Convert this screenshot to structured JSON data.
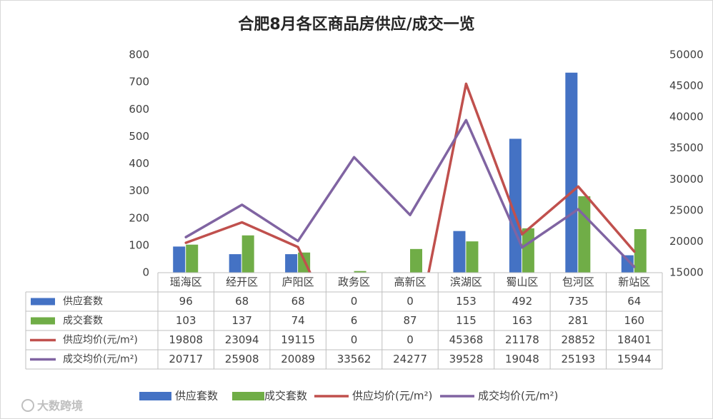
{
  "chart_data": {
    "type": "bar",
    "title": "合肥8月各区商品房供应/成交一览",
    "categories": [
      "瑶海区",
      "经开区",
      "庐阳区",
      "政务区",
      "高新区",
      "滨湖区",
      "蜀山区",
      "包河区",
      "新站区"
    ],
    "ylim_left": [
      0,
      800
    ],
    "yticks_left": [
      0,
      100,
      200,
      300,
      400,
      500,
      600,
      700,
      800
    ],
    "ylim_right": [
      15000,
      50000
    ],
    "yticks_right": [
      15000,
      20000,
      25000,
      30000,
      35000,
      40000,
      45000,
      50000
    ],
    "grid": false,
    "legend_position": "bottom",
    "series": [
      {
        "name": "供应套数",
        "type": "bar",
        "axis": "left",
        "color": "#4472c4",
        "values": [
          96,
          68,
          68,
          0,
          0,
          153,
          492,
          735,
          64
        ]
      },
      {
        "name": "成交套数",
        "type": "bar",
        "axis": "left",
        "color": "#70ad47",
        "values": [
          103,
          137,
          74,
          6,
          87,
          115,
          163,
          281,
          160
        ]
      },
      {
        "name": "供应均价(元/m²)",
        "type": "line",
        "axis": "right",
        "color": "#c0504d",
        "values": [
          19808,
          23094,
          19115,
          0,
          0,
          45368,
          21178,
          28852,
          18401
        ]
      },
      {
        "name": "成交均价(元/m²)",
        "type": "line",
        "axis": "right",
        "color": "#8064a2",
        "values": [
          20717,
          25908,
          20089,
          33562,
          24277,
          39528,
          19048,
          25193,
          15944
        ]
      }
    ],
    "table_rows": [
      {
        "label": "供应套数",
        "cells": [
          "96",
          "68",
          "68",
          "0",
          "0",
          "153",
          "492",
          "735",
          "64"
        ]
      },
      {
        "label": "成交套数",
        "cells": [
          "103",
          "137",
          "74",
          "6",
          "87",
          "115",
          "163",
          "281",
          "160"
        ]
      },
      {
        "label": "供应均价(元/m²)",
        "cells": [
          "19808",
          "23094",
          "19115",
          "0",
          "0",
          "45368",
          "21178",
          "28852",
          "18401"
        ]
      },
      {
        "label": "成交均价(元/m²)",
        "cells": [
          "20717",
          "25908",
          "20089",
          "33562",
          "24277",
          "39528",
          "19048",
          "25193",
          "15944"
        ]
      }
    ],
    "legend": [
      "供应套数",
      "成交套数",
      "供应均价(元/m²)",
      "成交均价(元/m²)"
    ]
  },
  "watermark_logo_text": "大数跨境"
}
